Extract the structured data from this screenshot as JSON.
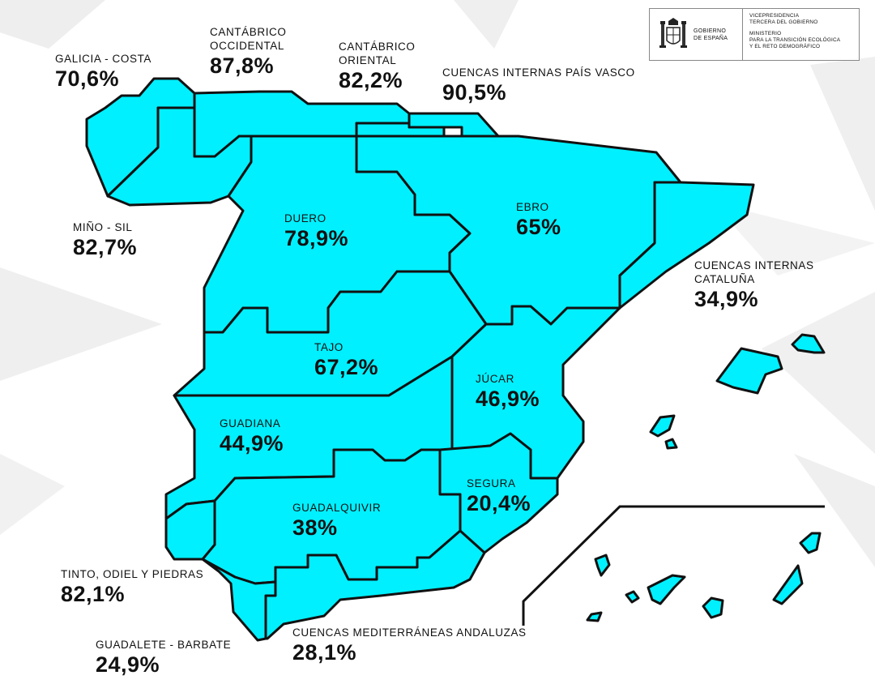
{
  "logo": {
    "government": "GOBIERNO\nDE ESPAÑA",
    "government_line1": "GOBIERNO",
    "government_line2": "DE ESPAÑA",
    "vice_line1": "VICEPRESIDENCIA",
    "vice_line2": "TERCERA DEL GOBIERNO",
    "ministry_line1": "MINISTERIO",
    "ministry_line2": "PARA LA TRANSICIÓN ECOLÓGICA",
    "ministry_line3": "Y EL RETO DEMOGRÁFICO",
    "crest_icon": "coat-of-arms-icon"
  },
  "colors": {
    "basin_fill": "#00f0ff",
    "border": "#111111",
    "background_shapes": "#ececec"
  },
  "basins": [
    {
      "id": "galicia-costa",
      "name": "GALICIA - COSTA",
      "value": "70,6%"
    },
    {
      "id": "cantabrico-occidental",
      "name_line1": "CANTÁBRICO",
      "name_line2": "OCCIDENTAL",
      "value": "87,8%"
    },
    {
      "id": "cantabrico-oriental",
      "name_line1": "CANTÁBRICO",
      "name_line2": "ORIENTAL",
      "value": "82,2%"
    },
    {
      "id": "cuencas-internas-pais-vasco",
      "name": "CUENCAS INTERNAS PAÍS VASCO",
      "value": "90,5%"
    },
    {
      "id": "mino-sil",
      "name": "MIÑO - SIL",
      "value": "82,7%"
    },
    {
      "id": "duero",
      "name": "DUERO",
      "value": "78,9%"
    },
    {
      "id": "ebro",
      "name": "EBRO",
      "value": "65%"
    },
    {
      "id": "cuencas-internas-cataluna",
      "name_line1": "CUENCAS INTERNAS",
      "name_line2": "CATALUÑA",
      "value": "34,9%"
    },
    {
      "id": "tajo",
      "name": "TAJO",
      "value": "67,2%"
    },
    {
      "id": "jucar",
      "name": "JÚCAR",
      "value": "46,9%"
    },
    {
      "id": "guadiana",
      "name": "GUADIANA",
      "value": "44,9%"
    },
    {
      "id": "segura",
      "name": "SEGURA",
      "value": "20,4%"
    },
    {
      "id": "guadalquivir",
      "name": "GUADALQUIVIR",
      "value": "38%"
    },
    {
      "id": "tinto-odiel-piedras",
      "name": "TINTO, ODIEL Y PIEDRAS",
      "value": "82,1%"
    },
    {
      "id": "guadalete-barbate",
      "name": "GUADALETE - BARBATE",
      "value": "24,9%"
    },
    {
      "id": "cuencas-mediterraneas-andaluzas",
      "name": "CUENCAS MEDITERRÁNEAS ANDALUZAS",
      "value": "28,1%"
    }
  ]
}
